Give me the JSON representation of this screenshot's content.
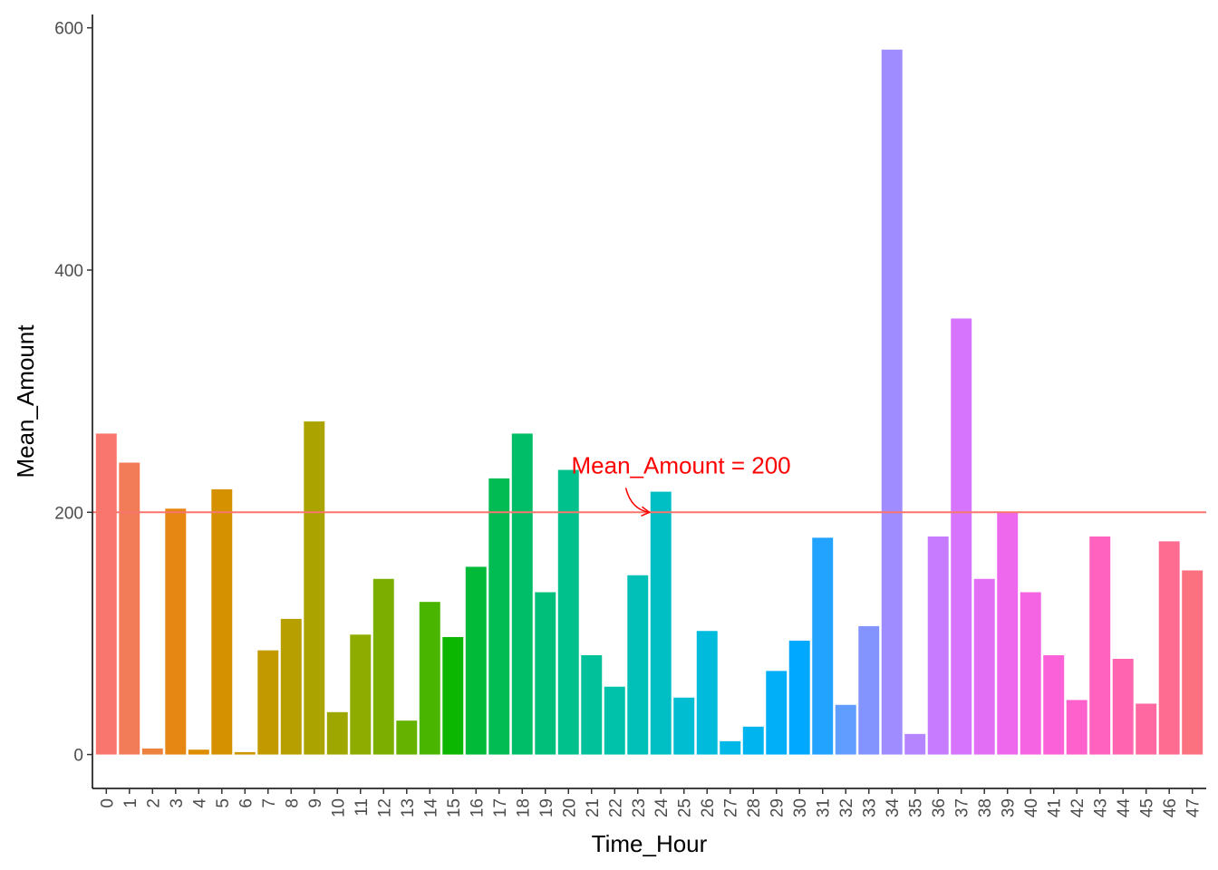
{
  "chart_data": {
    "type": "bar",
    "title": "",
    "xlabel": "Time_Hour",
    "ylabel": "Mean_Amount",
    "categories": [
      "0",
      "1",
      "2",
      "3",
      "4",
      "5",
      "6",
      "7",
      "8",
      "9",
      "10",
      "11",
      "12",
      "13",
      "14",
      "15",
      "16",
      "17",
      "18",
      "19",
      "20",
      "21",
      "22",
      "23",
      "24",
      "25",
      "26",
      "27",
      "28",
      "29",
      "30",
      "31",
      "32",
      "33",
      "34",
      "35",
      "36",
      "37",
      "38",
      "39",
      "40",
      "41",
      "42",
      "43",
      "44",
      "45",
      "46",
      "47"
    ],
    "values": [
      265,
      241,
      5,
      203,
      4,
      219,
      2,
      86,
      112,
      275,
      35,
      99,
      145,
      28,
      126,
      97,
      155,
      228,
      265,
      134,
      235,
      82,
      56,
      148,
      217,
      47,
      102,
      11,
      23,
      69,
      94,
      179,
      41,
      106,
      582,
      17,
      180,
      360,
      145,
      200,
      134,
      82,
      45,
      180,
      79,
      42,
      176,
      152
    ],
    "ylim": [
      -28,
      611
    ],
    "yticks": [
      0,
      200,
      400,
      600
    ],
    "grid": false,
    "legend": "none",
    "hline": {
      "value": 200,
      "color": "#F8766D"
    },
    "annotation": {
      "text": "Mean_Amount = 200",
      "color": "#FF0000",
      "arrow_x": 23.5,
      "arrow_y": 200
    }
  }
}
